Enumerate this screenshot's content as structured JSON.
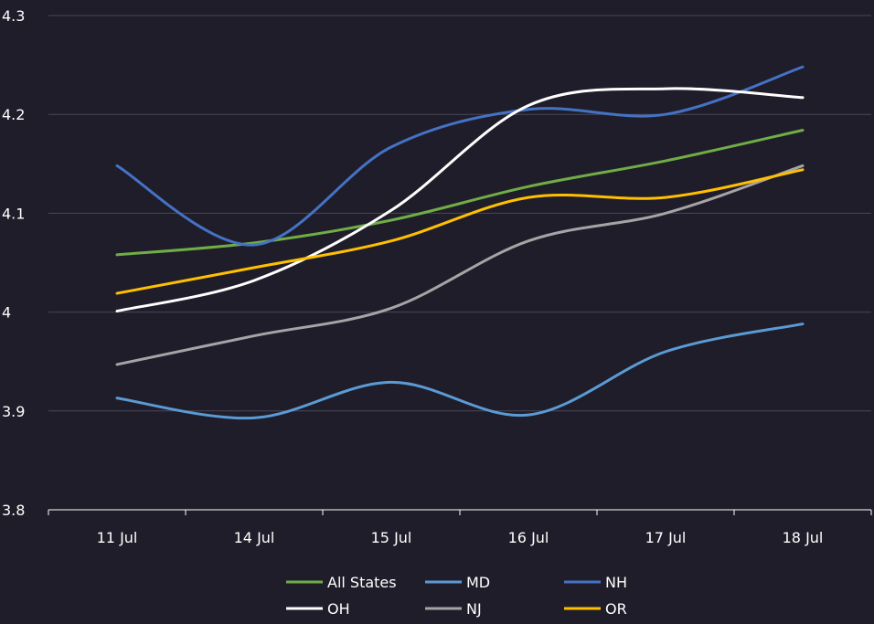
{
  "chart_data": {
    "type": "line",
    "title": "",
    "xlabel": "",
    "ylabel": "",
    "categories": [
      "11 Jul",
      "14 Jul",
      "15 Jul",
      "16 Jul",
      "17 Jul",
      "18 Jul"
    ],
    "ylim": [
      3.8,
      4.3
    ],
    "yticks": [
      "3.8",
      "3.9",
      "4",
      "4.1",
      "4.2",
      "4.3"
    ],
    "grid": "horizontal",
    "legend_position": "bottom",
    "series": [
      {
        "name": "All States",
        "color": "#70ad47",
        "values": [
          4.058,
          4.07,
          4.093,
          4.127,
          4.153,
          4.184
        ]
      },
      {
        "name": "MD",
        "color": "#5b9bd5",
        "values": [
          3.913,
          3.893,
          3.929,
          3.896,
          3.96,
          3.988
        ]
      },
      {
        "name": "NH",
        "color": "#4472c4",
        "values": [
          4.148,
          4.068,
          4.167,
          4.205,
          4.2,
          4.248
        ]
      },
      {
        "name": "OH",
        "color": "#ffffff",
        "values": [
          4.001,
          4.032,
          4.103,
          4.209,
          4.226,
          4.217
        ]
      },
      {
        "name": "NJ",
        "color": "#a5a5a5",
        "values": [
          3.947,
          3.976,
          4.004,
          4.072,
          4.1,
          4.148
        ]
      },
      {
        "name": "OR",
        "color": "#ffc000",
        "values": [
          4.019,
          4.045,
          4.072,
          4.116,
          4.116,
          4.144
        ]
      }
    ]
  }
}
